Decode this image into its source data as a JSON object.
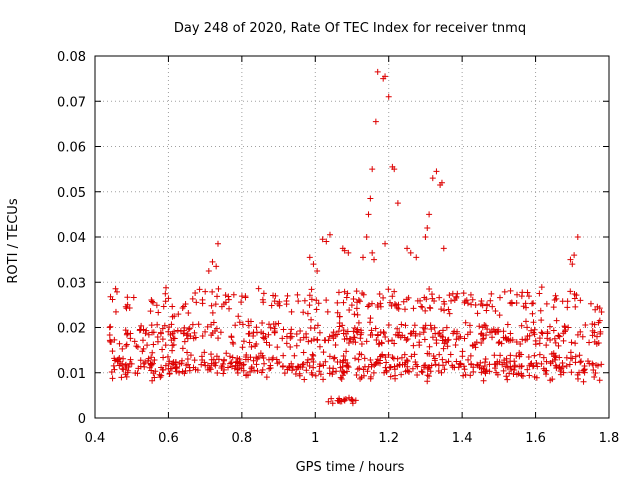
{
  "chart_data": {
    "type": "scatter",
    "title": "Day 248 of 2020, Rate Of TEC Index for receiver tnmq",
    "xlabel": "GPS time / hours",
    "ylabel": "ROTI / TECUs",
    "xlim": [
      0.4,
      1.8
    ],
    "ylim": [
      0,
      0.08
    ],
    "x_ticks": [
      "0.4",
      "0.6",
      "0.8",
      "1",
      "1.2",
      "1.4",
      "1.6",
      "1.8"
    ],
    "y_ticks": [
      "0",
      "0.01",
      "0.02",
      "0.03",
      "0.04",
      "0.05",
      "0.06",
      "0.07",
      "0.08"
    ],
    "grid": true,
    "marker": "+",
    "series": [
      {
        "color": "#dd0000",
        "points": [
          [
            1.17,
            0.0765
          ],
          [
            1.185,
            0.075
          ],
          [
            1.19,
            0.0755
          ],
          [
            1.2,
            0.071
          ],
          [
            1.165,
            0.0655
          ],
          [
            1.155,
            0.055
          ],
          [
            1.21,
            0.0555
          ],
          [
            1.215,
            0.055
          ],
          [
            1.33,
            0.0545
          ],
          [
            1.32,
            0.053
          ],
          [
            1.34,
            0.0515
          ],
          [
            1.345,
            0.052
          ],
          [
            1.15,
            0.0485
          ],
          [
            1.225,
            0.0475
          ],
          [
            1.31,
            0.045
          ],
          [
            1.145,
            0.045
          ],
          [
            1.305,
            0.042
          ],
          [
            1.3,
            0.04
          ],
          [
            1.04,
            0.0405
          ],
          [
            1.02,
            0.0395
          ],
          [
            1.03,
            0.039
          ],
          [
            1.715,
            0.04
          ],
          [
            1.14,
            0.04
          ],
          [
            0.735,
            0.0385
          ],
          [
            1.19,
            0.0385
          ],
          [
            1.075,
            0.0375
          ],
          [
            1.08,
            0.037
          ],
          [
            1.09,
            0.0365
          ],
          [
            1.25,
            0.0375
          ],
          [
            1.26,
            0.0365
          ],
          [
            1.275,
            0.0355
          ],
          [
            1.35,
            0.0375
          ],
          [
            1.155,
            0.0365
          ],
          [
            1.13,
            0.0355
          ],
          [
            1.16,
            0.035
          ],
          [
            1.705,
            0.036
          ],
          [
            1.695,
            0.035
          ],
          [
            1.7,
            0.034
          ],
          [
            0.72,
            0.0345
          ],
          [
            0.73,
            0.0335
          ],
          [
            0.71,
            0.0325
          ],
          [
            0.985,
            0.0355
          ],
          [
            0.995,
            0.034
          ],
          [
            1.005,
            0.0325
          ]
        ],
        "density_bands": [
          {
            "x_from": 0.44,
            "x_to": 1.78,
            "y_center": 0.0115,
            "y_spread": 0.0035,
            "count": 520
          },
          {
            "x_from": 0.44,
            "x_to": 1.78,
            "y_center": 0.0185,
            "y_spread": 0.0035,
            "count": 380
          },
          {
            "x_from": 0.44,
            "x_to": 1.78,
            "y_center": 0.0255,
            "y_spread": 0.0035,
            "count": 220
          },
          {
            "x_from": 1.02,
            "x_to": 1.12,
            "y_center": 0.004,
            "y_spread": 0.001,
            "count": 18
          }
        ]
      }
    ]
  }
}
